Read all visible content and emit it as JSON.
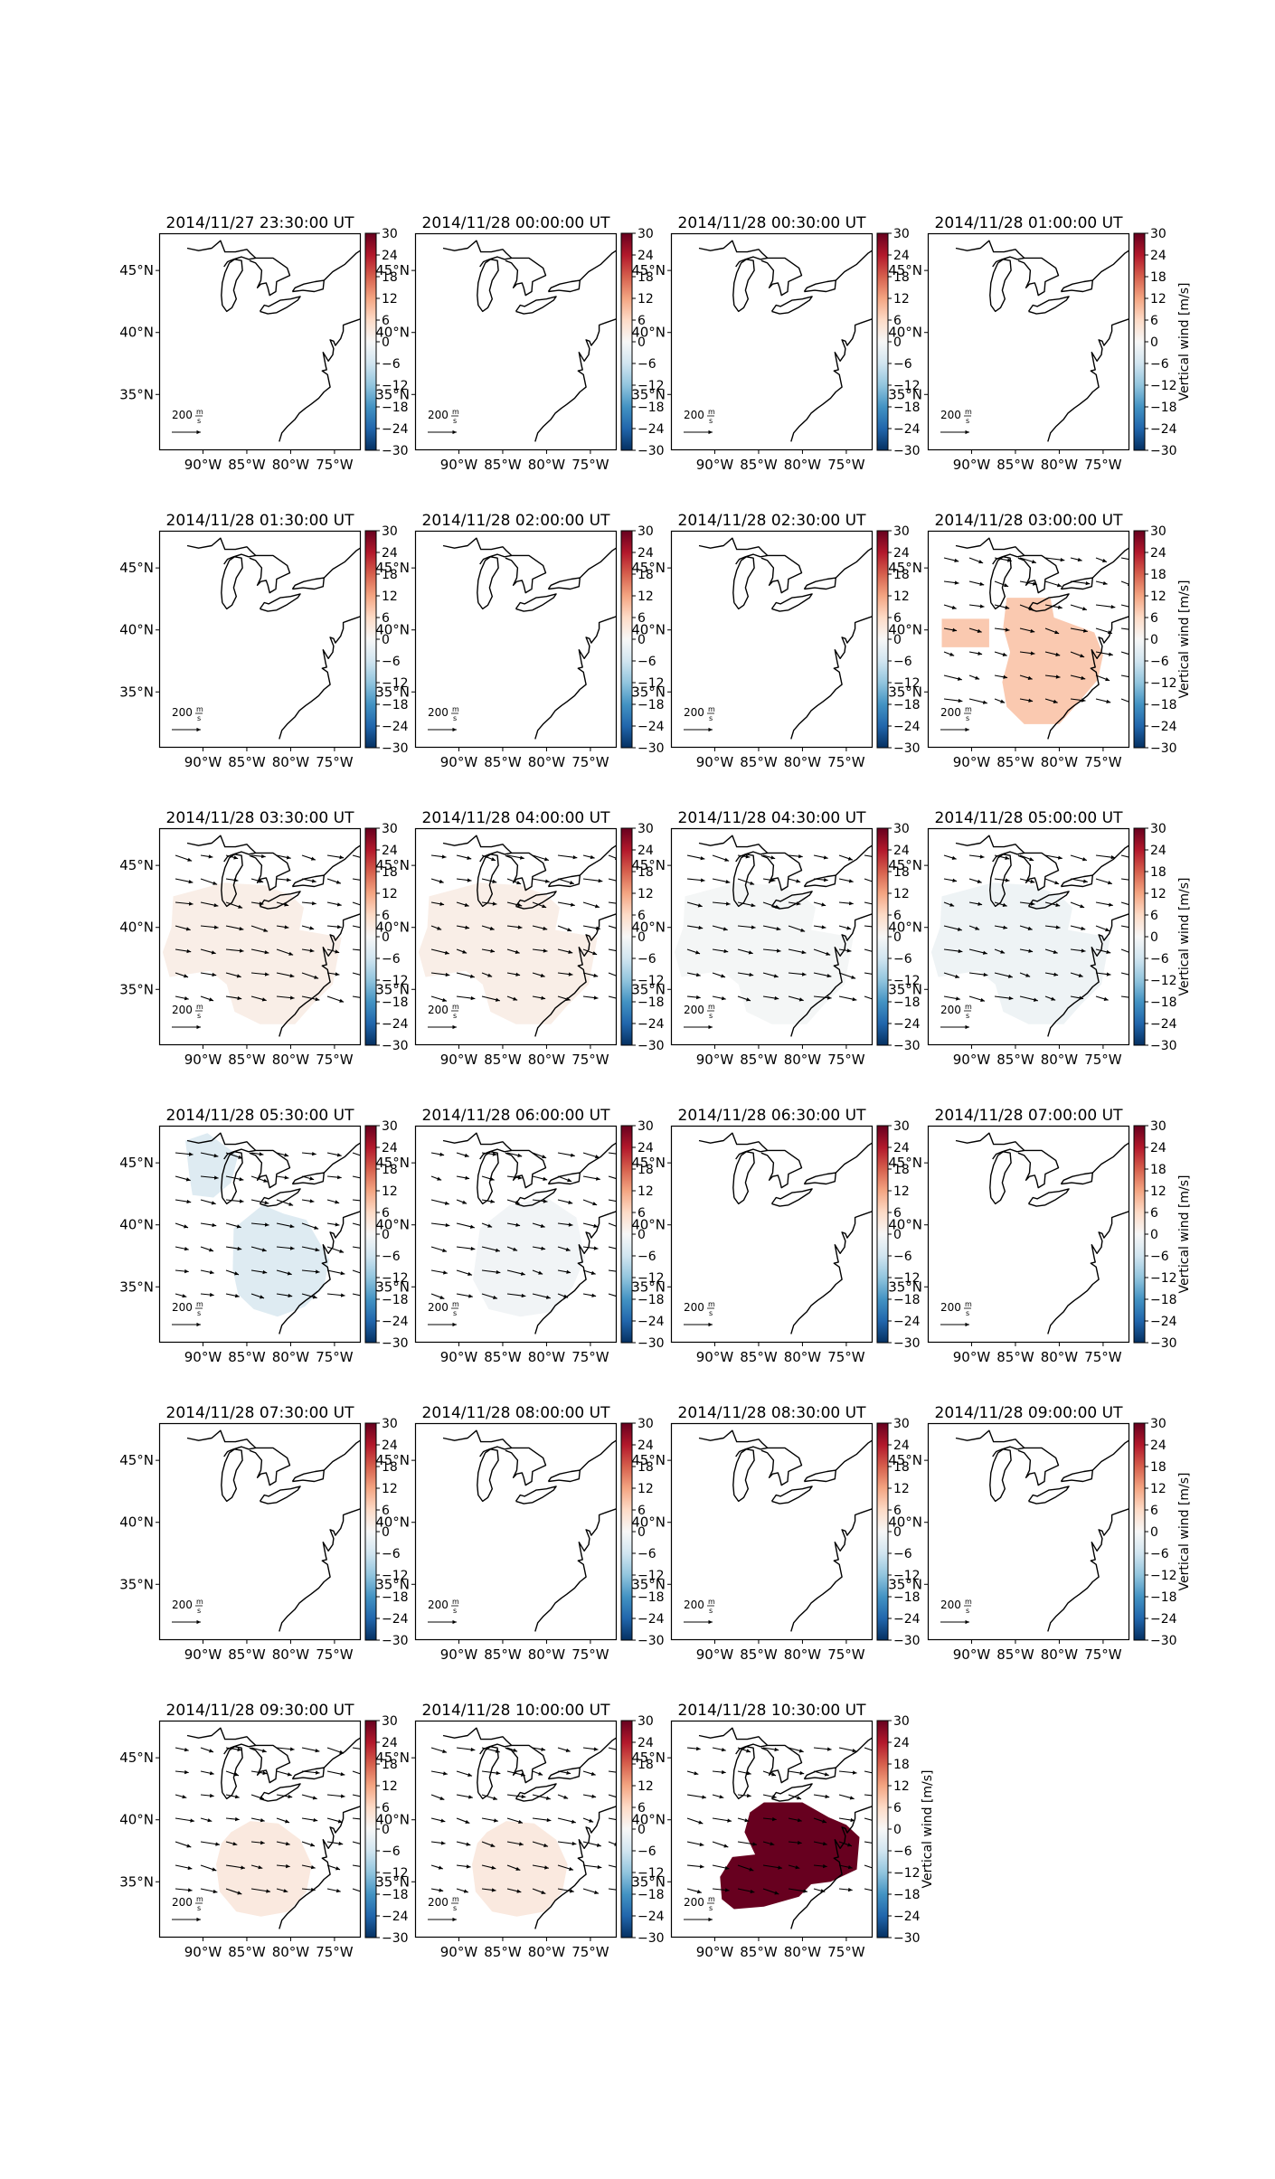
{
  "figure": {
    "colorbar": {
      "ticks": [
        "30",
        "24",
        "18",
        "12",
        "6",
        "0",
        "−6",
        "−12",
        "−18",
        "−24",
        "−30"
      ],
      "label": "Vertical wind [m/s]",
      "vmin": -30,
      "vmax": 30,
      "colormap": "RdBu_r"
    },
    "axes": {
      "lon_ticks": [
        "90°W",
        "85°W",
        "80°W",
        "75°W"
      ],
      "lat_ticks": [
        "45°N",
        "40°N",
        "35°N"
      ],
      "lon_range": [
        -95,
        -72
      ],
      "lat_range": [
        30.5,
        48
      ]
    },
    "scale_arrow": {
      "value": "200",
      "unit_num": "m",
      "unit_den": "s"
    },
    "panels": [
      {
        "title": "2014/11/27 23:30:00 UT",
        "region": "none",
        "value": 0
      },
      {
        "title": "2014/11/28 00:00:00 UT",
        "region": "none",
        "value": 0
      },
      {
        "title": "2014/11/28 00:30:00 UT",
        "region": "none",
        "value": 0
      },
      {
        "title": "2014/11/28 01:00:00 UT",
        "region": "none",
        "value": 0
      },
      {
        "title": "2014/11/28 01:30:00 UT",
        "region": "none",
        "value": 0
      },
      {
        "title": "2014/11/28 02:00:00 UT",
        "region": "none",
        "value": 0
      },
      {
        "title": "2014/11/28 02:30:00 UT",
        "region": "none",
        "value": 0
      },
      {
        "title": "2014/11/28 03:00:00 UT",
        "region": "three-blobs",
        "value": 8
      },
      {
        "title": "2014/11/28 03:30:00 UT",
        "region": "wide",
        "value": 2
      },
      {
        "title": "2014/11/28 04:00:00 UT",
        "region": "wide",
        "value": 2
      },
      {
        "title": "2014/11/28 04:30:00 UT",
        "region": "wide",
        "value": -0.5
      },
      {
        "title": "2014/11/28 05:00:00 UT",
        "region": "wide",
        "value": -1.5
      },
      {
        "title": "2014/11/28 05:30:00 UT",
        "region": "split",
        "value": -4
      },
      {
        "title": "2014/11/28 06:00:00 UT",
        "region": "southeast",
        "value": -1
      },
      {
        "title": "2014/11/28 06:30:00 UT",
        "region": "none",
        "value": 0
      },
      {
        "title": "2014/11/28 07:00:00 UT",
        "region": "none",
        "value": 0
      },
      {
        "title": "2014/11/28 07:30:00 UT",
        "region": "none",
        "value": 0
      },
      {
        "title": "2014/11/28 08:00:00 UT",
        "region": "none",
        "value": 0
      },
      {
        "title": "2014/11/28 08:30:00 UT",
        "region": "none",
        "value": 0
      },
      {
        "title": "2014/11/28 09:00:00 UT",
        "region": "none",
        "value": 0
      },
      {
        "title": "2014/11/28 09:30:00 UT",
        "region": "circle",
        "value": 3
      },
      {
        "title": "2014/11/28 10:00:00 UT",
        "region": "circle",
        "value": 3
      },
      {
        "title": "2014/11/28 10:30:00 UT",
        "region": "big",
        "value": 30
      }
    ]
  }
}
